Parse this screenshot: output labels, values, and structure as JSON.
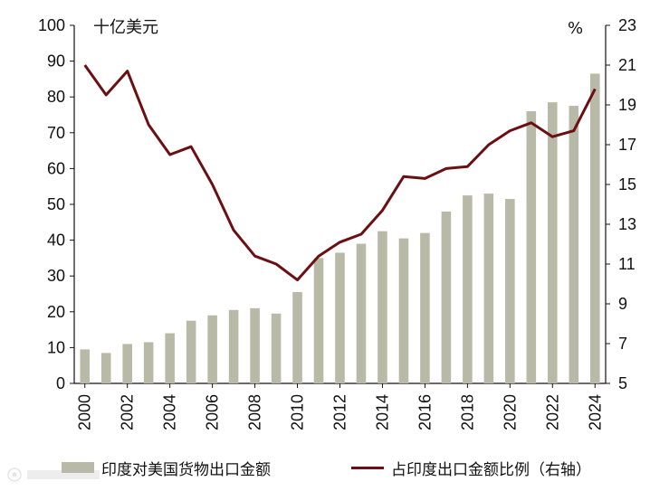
{
  "chart_data": {
    "type": "bar+line",
    "left_unit": "十亿美元",
    "right_unit": "%",
    "y_left_range": [
      0,
      100
    ],
    "y_left_ticks": [
      "0",
      "10",
      "20",
      "30",
      "40",
      "50",
      "60",
      "70",
      "80",
      "90",
      "100"
    ],
    "y_right_range": [
      5,
      23
    ],
    "y_right_ticks": [
      "5",
      "7",
      "9",
      "11",
      "13",
      "15",
      "17",
      "19",
      "21",
      "23"
    ],
    "x_tick_labels": [
      "2000",
      "2002",
      "2004",
      "2006",
      "2008",
      "2010",
      "2012",
      "2014",
      "2016",
      "2018",
      "2020",
      "2022",
      "2024"
    ],
    "years": [
      2000,
      2001,
      2002,
      2003,
      2004,
      2005,
      2006,
      2007,
      2008,
      2009,
      2010,
      2011,
      2012,
      2013,
      2014,
      2015,
      2016,
      2017,
      2018,
      2019,
      2020,
      2021,
      2022,
      2023,
      2024
    ],
    "series": [
      {
        "name": "印度对美国货物出口金额",
        "type": "bar",
        "axis": "left",
        "color": "#b8b9a6",
        "values": [
          9.5,
          8.5,
          11,
          11.5,
          14,
          17.5,
          19,
          20.5,
          21,
          19.5,
          25.5,
          35,
          36.5,
          39,
          42.5,
          40.5,
          42,
          48,
          52.5,
          53,
          51.5,
          76,
          78.5,
          77.5,
          86.5
        ]
      },
      {
        "name": "占印度出口金额比例（右轴）",
        "type": "line",
        "axis": "right",
        "color": "#6b0f12",
        "values": [
          21.0,
          19.5,
          20.7,
          18.0,
          16.5,
          16.9,
          15.0,
          12.7,
          11.4,
          11.0,
          10.2,
          11.4,
          12.1,
          12.5,
          13.7,
          15.4,
          15.3,
          15.8,
          15.9,
          17.0,
          17.7,
          18.1,
          17.4,
          17.7,
          19.8
        ]
      }
    ]
  },
  "legend": {
    "bar_label": "印度对美国货物出口金额",
    "line_label": "占印度出口金额比例（右轴）"
  }
}
